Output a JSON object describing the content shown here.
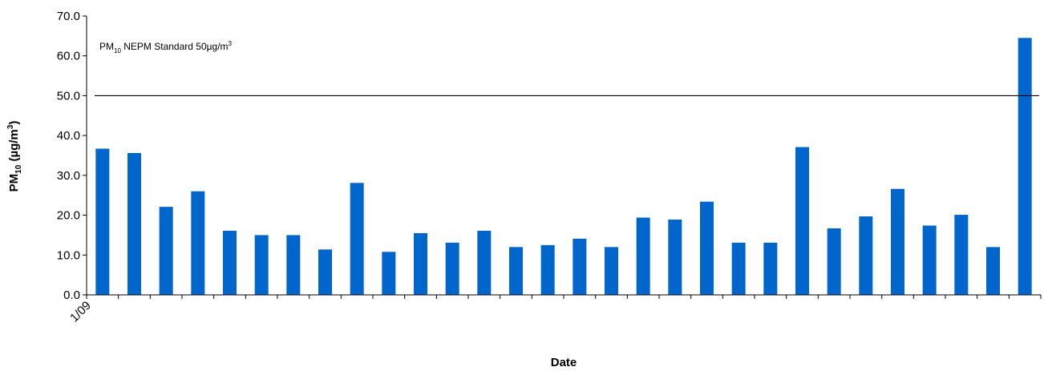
{
  "chart_data": {
    "type": "bar",
    "xlabel": "Date",
    "ylabel": {
      "main": "PM",
      "sub": "10",
      "unit_open": " (µg/m",
      "sup": "3",
      "unit_close": ")"
    },
    "x_tick_labels": [
      "1/09"
    ],
    "ylim": [
      0,
      70
    ],
    "y_ticks": [
      "0.0",
      "10.0",
      "20.0",
      "30.0",
      "40.0",
      "50.0",
      "60.0",
      "70.0"
    ],
    "values": [
      36.7,
      35.6,
      22.1,
      26.0,
      16.1,
      15.0,
      15.0,
      11.4,
      28.1,
      10.8,
      15.5,
      13.1,
      16.1,
      12.0,
      12.5,
      14.1,
      12.0,
      19.4,
      18.9,
      23.4,
      13.1,
      13.1,
      37.1,
      16.7,
      19.7,
      26.6,
      17.4,
      20.1,
      12.0,
      64.5
    ],
    "bar_color": "#0066CC",
    "grid": false,
    "reference_line": {
      "value": 50,
      "label": {
        "pre": "PM",
        "sub": "10",
        "mid": " NEPM Standard 50µg/m",
        "sup": "3"
      }
    }
  }
}
